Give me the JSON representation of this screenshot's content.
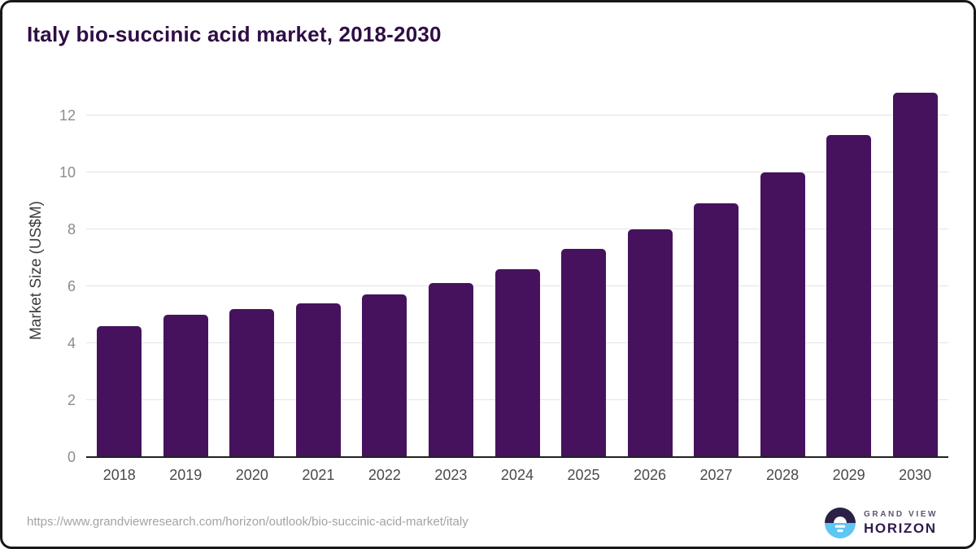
{
  "title": "Italy bio-succinic acid market, 2018-2030",
  "y_axis": {
    "label": "Market Size (US$M)",
    "ticks": [
      0,
      2,
      4,
      6,
      8,
      10,
      12
    ]
  },
  "chart_data": {
    "type": "bar",
    "categories": [
      "2018",
      "2019",
      "2020",
      "2021",
      "2022",
      "2023",
      "2024",
      "2025",
      "2026",
      "2027",
      "2028",
      "2029",
      "2030"
    ],
    "values": [
      4.6,
      5.0,
      5.2,
      5.4,
      5.7,
      6.1,
      6.6,
      7.3,
      8.0,
      8.9,
      10.0,
      11.3,
      12.8
    ],
    "title": "Italy bio-succinic acid market, 2018-2030",
    "xlabel": "",
    "ylabel": "Market Size (US$M)",
    "ylim": [
      0,
      13.1
    ],
    "grid": "horizontal",
    "legend": "none",
    "bar_color": "#46125d"
  },
  "colors": {
    "accent_purple": "#46125d",
    "title_purple": "#2f0d45",
    "gridline": "#e4e4e6",
    "axis_line": "#212121",
    "tick_label_gray": "#8c8c8c",
    "logo_dark": "#2b2045",
    "logo_blue": "#5ec6f2"
  },
  "footer": {
    "source_url": "https://www.grandviewresearch.com/horizon/outlook/bio-succinic-acid-market/italy"
  },
  "logo": {
    "brand_top": "GRAND VIEW",
    "brand_bottom": "HORIZON"
  }
}
